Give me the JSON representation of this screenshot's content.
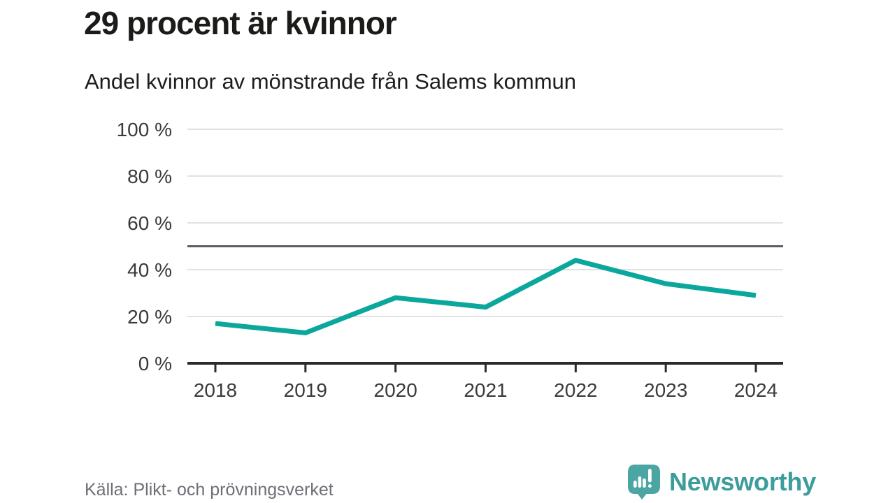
{
  "header": {
    "title": "29 procent är kvinnor",
    "subtitle": "Andel kvinnor av mönstrande från Salems kommun"
  },
  "chart_data": {
    "type": "line",
    "title": "29 procent är kvinnor",
    "subtitle": "Andel kvinnor av mönstrande från Salems kommun",
    "categories": [
      "2018",
      "2019",
      "2020",
      "2021",
      "2022",
      "2023",
      "2024"
    ],
    "series": [
      {
        "name": "Andel kvinnor av mönstrande",
        "values": [
          17,
          13,
          28,
          24,
          44,
          34,
          29
        ]
      }
    ],
    "unit": "%",
    "ylim": [
      0,
      100
    ],
    "y_ticks": [
      0,
      20,
      40,
      60,
      80,
      100
    ],
    "y_tick_suffix": " %",
    "reference_line_value": 50,
    "grid": true,
    "legend": "none",
    "colors": {
      "line": "#0ba79d",
      "reference_line": "#5d5d68",
      "axis": "#2b2b2b",
      "gridline": "#e2e2e2",
      "tick_label": "#3a3a3a"
    }
  },
  "footer": {
    "source": "Källa: Plikt- och prövningsverket",
    "brand": "Newsworthy",
    "brand_text_color": "#3d9c9c",
    "logo_bubble_color": "#4ba5a2",
    "logo_icon": "bar-chart-exclamation-speech-bubble"
  }
}
